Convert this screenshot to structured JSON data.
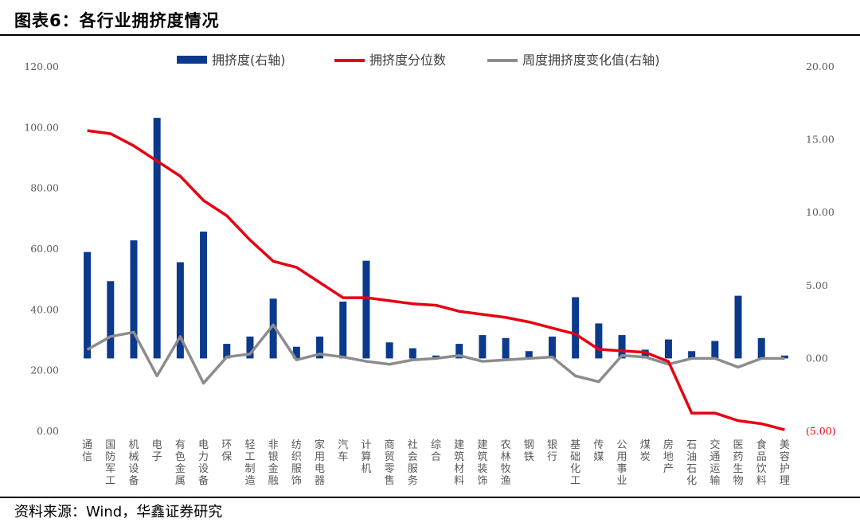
{
  "header": {
    "title": "图表6：各行业拥挤度情况"
  },
  "footer": {
    "source": "资料来源：Wind，华鑫证券研究"
  },
  "colors": {
    "bars": "#0b3a8c",
    "percentile_line": "#e60012",
    "weekly_change_line": "#8c8c8c"
  },
  "chart_data": {
    "type": "bar",
    "title": "",
    "categories": [
      "通信",
      "国防军工",
      "机械设备",
      "电子",
      "有色金属",
      "电力设备",
      "环保",
      "轻工制造",
      "非银金融",
      "纺织服饰",
      "家用电器",
      "汽车",
      "计算机",
      "商贸零售",
      "社会服务",
      "综合",
      "建筑材料",
      "建筑装饰",
      "农林牧渔",
      "钢铁",
      "银行",
      "基础化工",
      "传媒",
      "公用事业",
      "煤炭",
      "房地产",
      "石油石化",
      "交通运输",
      "医药生物",
      "食品饮料",
      "美容护理"
    ],
    "left_axis": {
      "ylim": [
        0,
        120
      ],
      "ticks": [
        "0.00",
        "20.00",
        "40.00",
        "60.00",
        "80.00",
        "100.00",
        "120.00"
      ]
    },
    "right_axis": {
      "ylim": [
        -5,
        20
      ],
      "ticks": [
        "(5.00)",
        "0.00",
        "5.00",
        "10.00",
        "15.00",
        "20.00"
      ]
    },
    "legend_position": "top",
    "series": [
      {
        "name": "拥挤度(右轴)",
        "type": "bar",
        "axis": "right",
        "values": [
          7.3,
          5.3,
          8.1,
          16.5,
          6.6,
          8.7,
          1.0,
          1.5,
          4.1,
          0.8,
          1.5,
          3.9,
          6.7,
          1.1,
          0.7,
          0.2,
          1.0,
          1.6,
          1.4,
          0.5,
          1.5,
          4.2,
          2.4,
          1.6,
          0.6,
          1.3,
          0.5,
          1.2,
          4.3,
          1.4,
          0.2
        ]
      },
      {
        "name": "拥挤度分位数",
        "type": "line",
        "axis": "left",
        "values": [
          99,
          98,
          94,
          89,
          84,
          76,
          71,
          63,
          56,
          54,
          49,
          44,
          44,
          43,
          42,
          41.5,
          39.5,
          38.5,
          37.5,
          36,
          34,
          32,
          27,
          26.5,
          26,
          23,
          6,
          6,
          3.5,
          2.5,
          0.5
        ]
      },
      {
        "name": "周度拥挤度变化值(右轴)",
        "type": "line",
        "axis": "right",
        "values": [
          0.6,
          1.5,
          1.8,
          -1.2,
          1.5,
          -1.7,
          0.1,
          0.3,
          2.3,
          -0.1,
          0.3,
          0.1,
          -0.2,
          -0.4,
          -0.1,
          0.0,
          0.2,
          -0.2,
          -0.1,
          0.0,
          0.1,
          -1.2,
          -1.6,
          0.2,
          0.1,
          -0.4,
          0.0,
          0.0,
          -0.6,
          0.0,
          0.0
        ]
      }
    ]
  }
}
